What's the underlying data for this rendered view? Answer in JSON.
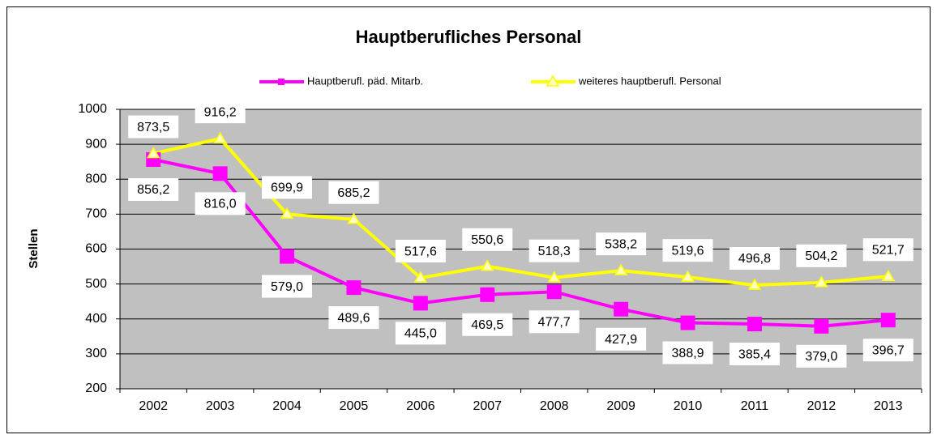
{
  "chart_data": {
    "type": "line",
    "title": "Hauptberufliches Personal",
    "y_label": "Stellen",
    "categories": [
      "2002",
      "2003",
      "2004",
      "2005",
      "2006",
      "2007",
      "2008",
      "2009",
      "2010",
      "2011",
      "2012",
      "2013"
    ],
    "series": [
      {
        "name": "Hauptberufl. päd. Mitarb.",
        "color": "#ff00ff",
        "marker": "square",
        "values": [
          856.2,
          816.0,
          579.0,
          489.6,
          445.0,
          469.5,
          477.7,
          427.9,
          388.9,
          385.4,
          379.0,
          396.7
        ],
        "value_labels": [
          "856,2",
          "816,0",
          "579,0",
          "489,6",
          "445,0",
          "469,5",
          "477,7",
          "427,9",
          "388,9",
          "385,4",
          "379,0",
          "396,7"
        ]
      },
      {
        "name": "weiteres hauptberufl. Personal",
        "color": "#ffff00",
        "marker": "triangle",
        "values": [
          873.5,
          916.2,
          699.9,
          685.2,
          517.6,
          550.6,
          518.3,
          538.2,
          519.6,
          496.8,
          504.2,
          521.7
        ],
        "value_labels": [
          "873,5",
          "916,2",
          "699,9",
          "685,2",
          "517,6",
          "550,6",
          "518,3",
          "538,2",
          "519,6",
          "496,8",
          "504,2",
          "521,7"
        ]
      }
    ],
    "ylim": [
      200,
      1000
    ],
    "yticks": [
      200,
      300,
      400,
      500,
      600,
      700,
      800,
      900,
      1000
    ],
    "grid": true,
    "legend": "top"
  }
}
